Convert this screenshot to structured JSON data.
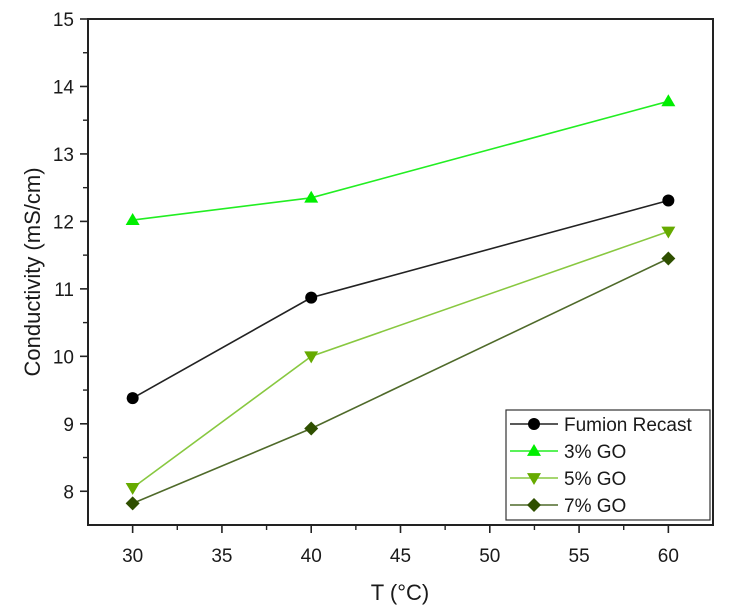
{
  "chart_data": {
    "type": "line",
    "title": "",
    "xlabel": "T (°C)",
    "ylabel": "Conductivity (mS/cm)",
    "xlim": [
      27.5,
      62.5
    ],
    "ylim": [
      7.5,
      15
    ],
    "xticks": [
      30,
      35,
      40,
      45,
      50,
      55,
      60
    ],
    "xminor_ticks": [
      32.5,
      37.5,
      42.5,
      47.5,
      52.5,
      57.5
    ],
    "yticks": [
      8,
      9,
      10,
      11,
      12,
      13,
      14,
      15
    ],
    "yminor_ticks": [
      8.5,
      9.5,
      10.5,
      11.5,
      12.5,
      13.5,
      14.5
    ],
    "grid": false,
    "legend_position": "bottom-right",
    "x": [
      30,
      40,
      60
    ],
    "series": [
      {
        "name": "Fumion Recast",
        "values": [
          9.38,
          10.87,
          12.31
        ],
        "marker": "circle",
        "color": "#000000",
        "line_color": "#222222"
      },
      {
        "name": "3% GO",
        "values": [
          12.02,
          12.35,
          13.78
        ],
        "marker": "triangle-up",
        "color": "#00ee00",
        "line_color": "#22ee22"
      },
      {
        "name": "5% GO",
        "values": [
          8.05,
          10.0,
          11.85
        ],
        "marker": "triangle-down",
        "color": "#66aa00",
        "line_color": "#88c840"
      },
      {
        "name": "7% GO",
        "values": [
          7.82,
          8.93,
          11.45
        ],
        "marker": "diamond",
        "color": "#2f4f00",
        "line_color": "#4f6a2a"
      }
    ]
  }
}
